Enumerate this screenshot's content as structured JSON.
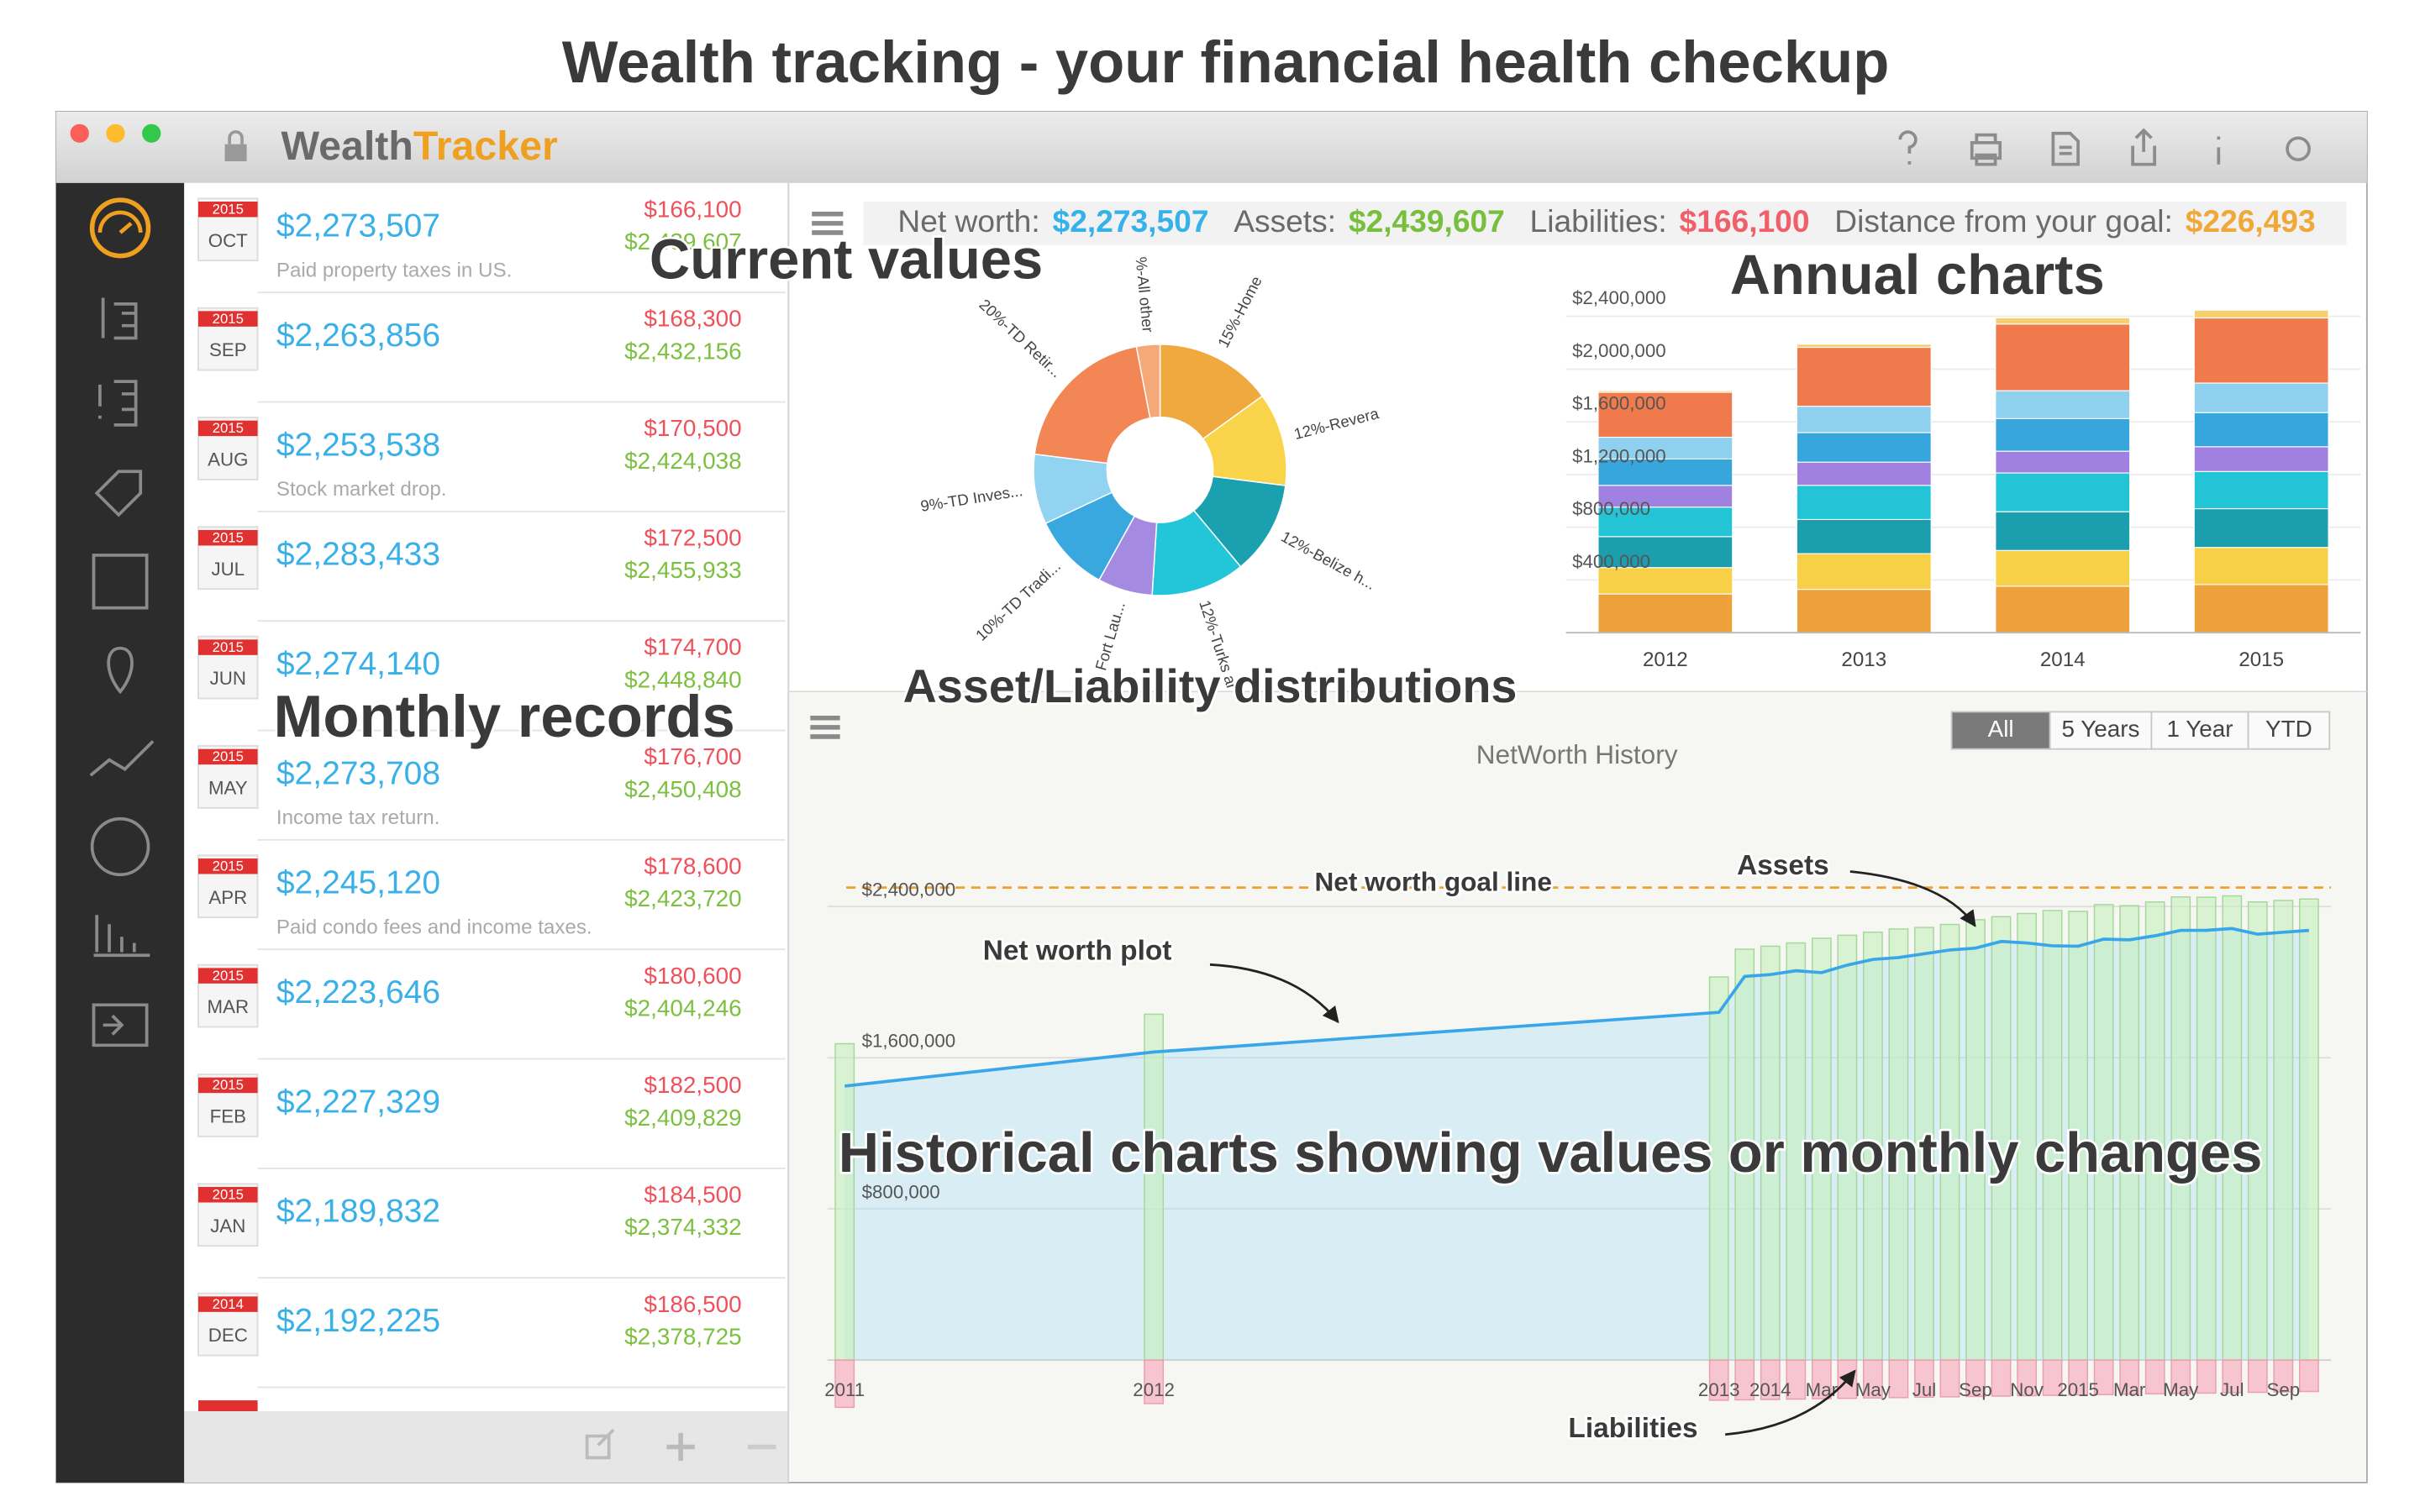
{
  "headline": "Wealth tracking - your financial health checkup",
  "app": {
    "name": [
      "Wealth",
      "Tracker"
    ]
  },
  "summary": [
    {
      "label": "Net worth:",
      "value": "$2,273,507"
    },
    {
      "label": "Assets:",
      "value": "$2,439,607"
    },
    {
      "label": "Liabilities:",
      "value": "$166,100"
    },
    {
      "label": "Distance from your goal:",
      "value": "$226,493"
    }
  ],
  "records": [
    {
      "year": "2015",
      "month": "OCT",
      "net_worth": "$2,273,507",
      "liabilities": "$166,100",
      "assets": "$2,439,607",
      "note": "Paid property taxes in US."
    },
    {
      "year": "2015",
      "month": "SEP",
      "net_worth": "$2,263,856",
      "liabilities": "$168,300",
      "assets": "$2,432,156"
    },
    {
      "year": "2015",
      "month": "AUG",
      "net_worth": "$2,253,538",
      "liabilities": "$170,500",
      "assets": "$2,424,038",
      "note": "Stock market drop."
    },
    {
      "year": "2015",
      "month": "JUL",
      "net_worth": "$2,283,433",
      "liabilities": "$172,500",
      "assets": "$2,455,933"
    },
    {
      "year": "2015",
      "month": "JUN",
      "net_worth": "$2,274,140",
      "liabilities": "$174,700",
      "assets": "$2,448,840"
    },
    {
      "year": "2015",
      "month": "MAY",
      "net_worth": "$2,273,708",
      "liabilities": "$176,700",
      "assets": "$2,450,408",
      "note": "Income tax return."
    },
    {
      "year": "2015",
      "month": "APR",
      "net_worth": "$2,245,120",
      "liabilities": "$178,600",
      "assets": "$2,423,720",
      "note": "Paid condo fees and income taxes."
    },
    {
      "year": "2015",
      "month": "MAR",
      "net_worth": "$2,223,646",
      "liabilities": "$180,600",
      "assets": "$2,404,246"
    },
    {
      "year": "2015",
      "month": "FEB",
      "net_worth": "$2,227,329",
      "liabilities": "$182,500",
      "assets": "$2,409,829"
    },
    {
      "year": "2015",
      "month": "JAN",
      "net_worth": "$2,189,832",
      "liabilities": "$184,500",
      "assets": "$2,374,332"
    },
    {
      "year": "2014",
      "month": "DEC",
      "net_worth": "$2,192,225",
      "liabilities": "$186,500",
      "assets": "$2,378,725"
    }
  ],
  "annotations": [
    "Current values",
    "Annual charts",
    "Asset/Liability distributions",
    "Monthly records",
    "Historical charts showing values or monthly changes"
  ],
  "range_buttons": [
    "All",
    "5 Years",
    "1 Year",
    "YTD"
  ],
  "selected_range": "All",
  "chart_data": [
    {
      "type": "pie",
      "donut": true,
      "categories": [
        "15%-Home",
        "12%-Revera",
        "12%-Belize h...",
        "12%-Turks ar",
        "Fort Lau...",
        "10%-TD Tradi...",
        "9%-TD Inves...",
        "20%-TD Retir...",
        "%-All other"
      ],
      "values": [
        15,
        12,
        12,
        12,
        7,
        10,
        9,
        20,
        3
      ],
      "colors": [
        "#efa93e",
        "#f9d44a",
        "#1aa0ae",
        "#22c6d8",
        "#a58ae2",
        "#38a8de",
        "#92d3f1",
        "#f28655",
        "#f5a878"
      ]
    },
    {
      "type": "bar",
      "stacked": true,
      "categories": [
        "2012",
        "2013",
        "2014",
        "2015"
      ],
      "ylim": [
        0,
        2600000
      ],
      "yticks": [
        {
          "value": 400000,
          "label": "$400,000"
        },
        {
          "value": 800000,
          "label": "$800,000"
        },
        {
          "value": 1200000,
          "label": "$1,200,000"
        },
        {
          "value": 1600000,
          "label": "$1,600,000"
        },
        {
          "value": 2000000,
          "label": "$2,000,000"
        },
        {
          "value": 2400000,
          "label": "$2,400,000"
        }
      ],
      "grid": true,
      "series": [
        {
          "color": "#eea03a",
          "values": [
            294000,
            329000,
            353000,
            365000
          ]
        },
        {
          "color": "#f8d048",
          "values": [
            200000,
            271000,
            271000,
            282000
          ]
        },
        {
          "color": "#1b9fae",
          "values": [
            235000,
            259000,
            294000,
            294000
          ]
        },
        {
          "color": "#23c4d6",
          "values": [
            224000,
            259000,
            294000,
            282000
          ]
        },
        {
          "color": "#a080e0",
          "values": [
            165000,
            176000,
            165000,
            188000
          ]
        },
        {
          "color": "#36a6dc",
          "values": [
            200000,
            224000,
            247000,
            259000
          ]
        },
        {
          "color": "#8fd0ef",
          "values": [
            165000,
            200000,
            212000,
            224000
          ]
        },
        {
          "color": "#f07a4c",
          "values": [
            341000,
            447000,
            506000,
            494000
          ]
        },
        {
          "color": "#f6d070",
          "values": [
            12000,
            24000,
            47000,
            59000
          ]
        }
      ]
    },
    {
      "type": "bar",
      "title": "NetWorth History",
      "categories": [
        "2011",
        "2012",
        "2013",
        null,
        "2014",
        null,
        "Mar",
        null,
        "May",
        null,
        "Jul",
        null,
        "Sep",
        null,
        "Nov",
        null,
        "2015",
        null,
        "Mar",
        null,
        "May",
        null,
        "Jul",
        null,
        "Sep",
        null
      ],
      "ylim": [
        -200000,
        2800000
      ],
      "yticks": [
        {
          "value": 800000,
          "label": "$800,000"
        },
        {
          "value": 1600000,
          "label": "$1,600,000"
        },
        {
          "value": 2400000,
          "label": "$2,400,000"
        }
      ],
      "grid": true,
      "goal": {
        "value": 2500000,
        "label": "Net worth goal line",
        "color": "#f0a030"
      },
      "series": [
        {
          "name": "Assets",
          "type": "bar",
          "color": "#c4f0bc",
          "values": [
            1674000,
            1830000,
            2027000,
            2174000,
            2190000,
            2207000,
            2232000,
            2248000,
            2264000,
            2281000,
            2289000,
            2305000,
            2330000,
            2346000,
            2363000,
            2378725,
            2374332,
            2409829,
            2404246,
            2423720,
            2450408,
            2448840,
            2455933,
            2424038,
            2432156,
            2439607
          ]
        },
        {
          "name": "Liabilities",
          "type": "bar",
          "direction": "down",
          "color": "#f7c0cc",
          "values": [
            250000,
            230000,
            212500,
            210500,
            208500,
            206500,
            204500,
            202500,
            200500,
            198500,
            196500,
            194500,
            192500,
            190500,
            188500,
            186500,
            184500,
            182500,
            180600,
            178600,
            176700,
            174700,
            172500,
            170500,
            168300,
            166100
          ]
        },
        {
          "name": "Net worth plot",
          "type": "line",
          "color": "#3aa6ea",
          "values": [
            1450000,
            1630000,
            1840000,
            2030000,
            2040000,
            2060000,
            2050000,
            2090000,
            2120000,
            2130000,
            2150000,
            2170000,
            2180000,
            2215000,
            2207000,
            2192225,
            2189832,
            2227329,
            2223646,
            2245120,
            2273708,
            2274140,
            2283433,
            2253538,
            2263856,
            2273507
          ]
        }
      ]
    }
  ]
}
